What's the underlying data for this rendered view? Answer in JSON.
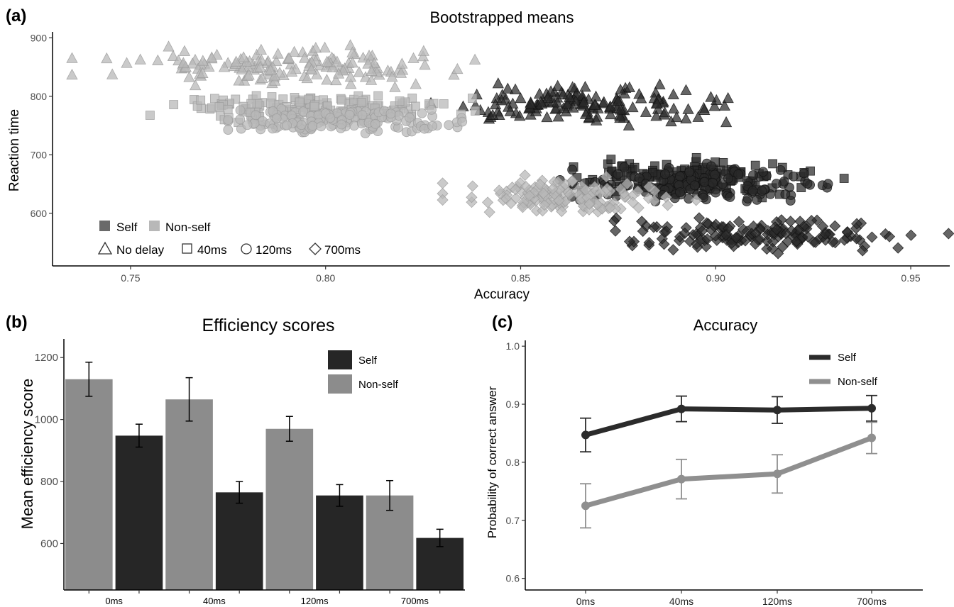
{
  "panels": {
    "a": {
      "letter": "(a)"
    },
    "b": {
      "letter": "(b)"
    },
    "c": {
      "letter": "(c)"
    }
  },
  "legend_a": {
    "self": "Self",
    "nonself": "Non-self",
    "no_delay": "No delay",
    "ms40": "40ms",
    "ms120": "120ms",
    "ms700": "700ms"
  },
  "colors": {
    "self_dark": "#2a2a2a",
    "nonself_light": "#b8b8b8",
    "bar_self": "#262626",
    "bar_nonself": "#8c8c8c",
    "line_self": "#2b2b2b",
    "line_nonself": "#8f8f8f"
  },
  "chart_data": [
    {
      "type": "scatter",
      "title": "Bootstrapped means",
      "xlabel": "Accuracy",
      "ylabel": "Reaction time",
      "xlim": [
        0.73,
        0.96
      ],
      "ylim": [
        510,
        910
      ],
      "x_ticks": [
        "0.75",
        "0.80",
        "0.85",
        "0.90",
        "0.95"
      ],
      "y_ticks": [
        "600",
        "700",
        "800",
        "900"
      ],
      "legend_position": "bottom-left",
      "clusters": [
        {
          "group": "Non-self",
          "condition": "No delay",
          "shape": "triangle",
          "x_range": [
            0.735,
            0.845
          ],
          "y_range": [
            815,
            890
          ],
          "x_mean": 0.79,
          "y_mean": 852
        },
        {
          "group": "Self",
          "condition": "No delay",
          "shape": "triangle",
          "x_range": [
            0.825,
            0.91
          ],
          "y_range": [
            750,
            825
          ],
          "x_mean": 0.868,
          "y_mean": 785
        },
        {
          "group": "Non-self",
          "condition": "40ms",
          "shape": "square",
          "x_range": [
            0.755,
            0.845
          ],
          "y_range": [
            755,
            810
          ],
          "x_mean": 0.795,
          "y_mean": 780
        },
        {
          "group": "Non-self",
          "condition": "120ms",
          "shape": "circle",
          "x_range": [
            0.775,
            0.845
          ],
          "y_range": [
            730,
            790
          ],
          "x_mean": 0.805,
          "y_mean": 758
        },
        {
          "group": "Self",
          "condition": "40ms",
          "shape": "square",
          "x_range": [
            0.855,
            0.935
          ],
          "y_range": [
            625,
            695
          ],
          "x_mean": 0.893,
          "y_mean": 662
        },
        {
          "group": "Self",
          "condition": "120ms",
          "shape": "circle",
          "x_range": [
            0.86,
            0.94
          ],
          "y_range": [
            615,
            690
          ],
          "x_mean": 0.897,
          "y_mean": 650
        },
        {
          "group": "Non-self",
          "condition": "700ms",
          "shape": "diamond",
          "x_range": [
            0.83,
            0.895
          ],
          "y_range": [
            590,
            665
          ],
          "x_mean": 0.86,
          "y_mean": 627
        },
        {
          "group": "Self",
          "condition": "700ms",
          "shape": "diamond",
          "x_range": [
            0.865,
            0.96
          ],
          "y_range": [
            530,
            600
          ],
          "x_mean": 0.91,
          "y_mean": 565
        }
      ]
    },
    {
      "type": "bar",
      "title": "Efficiency scores",
      "xlabel": "",
      "ylabel": "Mean efficiency score",
      "ylim": [
        450,
        1260
      ],
      "y_ticks": [
        "600",
        "800",
        "1000",
        "1200"
      ],
      "x_ticks": [
        "0ms",
        "40ms",
        "120ms",
        "700ms"
      ],
      "legend_position": "top-right",
      "series_names": [
        "Self",
        "Non-self"
      ],
      "bars": [
        {
          "group": "Non-self",
          "value": 1130,
          "err": 55
        },
        {
          "group": "Self",
          "value": 948,
          "err": 37
        },
        {
          "group": "Non-self",
          "value": 1065,
          "err": 70
        },
        {
          "group": "Self",
          "value": 765,
          "err": 35
        },
        {
          "group": "Non-self",
          "value": 970,
          "err": 40
        },
        {
          "group": "Self",
          "value": 755,
          "err": 35
        },
        {
          "group": "Non-self",
          "value": 755,
          "err": 48
        },
        {
          "group": "Self",
          "value": 618,
          "err": 28
        }
      ]
    },
    {
      "type": "line",
      "title": "Accuracy",
      "xlabel": "",
      "ylabel": "Probability of correct answer",
      "categories": [
        "0ms",
        "40ms",
        "120ms",
        "700ms"
      ],
      "ylim": [
        0.58,
        1.01
      ],
      "y_ticks": [
        "0.6",
        "0.7",
        "0.8",
        "0.9",
        "1.0"
      ],
      "legend_position": "top-right",
      "series": [
        {
          "name": "Self",
          "values": [
            0.847,
            0.892,
            0.89,
            0.893
          ],
          "err": [
            0.029,
            0.022,
            0.023,
            0.022
          ]
        },
        {
          "name": "Non-self",
          "values": [
            0.725,
            0.771,
            0.78,
            0.842
          ],
          "err": [
            0.038,
            0.034,
            0.033,
            0.027
          ]
        }
      ]
    }
  ]
}
